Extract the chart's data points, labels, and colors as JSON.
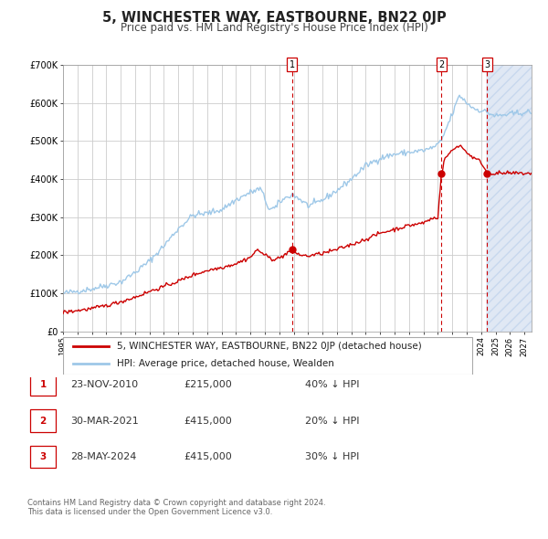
{
  "title": "5, WINCHESTER WAY, EASTBOURNE, BN22 0JP",
  "subtitle": "Price paid vs. HM Land Registry's House Price Index (HPI)",
  "ylim": [
    0,
    700000
  ],
  "yticks": [
    0,
    100000,
    200000,
    300000,
    400000,
    500000,
    600000,
    700000
  ],
  "ytick_labels": [
    "£0",
    "£100K",
    "£200K",
    "£300K",
    "£400K",
    "£500K",
    "£600K",
    "£700K"
  ],
  "xlim_start": 1995.0,
  "xlim_end": 2027.5,
  "hpi_color": "#9ec8e8",
  "price_color": "#cc0000",
  "marker_color": "#cc0000",
  "vline_color": "#cc0000",
  "plot_bg_color": "#ffffff",
  "grid_color": "#cccccc",
  "hatch_color": "#e0e8f4",
  "legend_label_price": "5, WINCHESTER WAY, EASTBOURNE, BN22 0JP (detached house)",
  "legend_label_hpi": "HPI: Average price, detached house, Wealden",
  "sales": [
    {
      "num": 1,
      "date_num": 2010.9,
      "price": 215000,
      "label": "23-NOV-2010",
      "pct": "40%",
      "dir": "↓"
    },
    {
      "num": 2,
      "date_num": 2021.25,
      "price": 415000,
      "label": "30-MAR-2021",
      "pct": "20%",
      "dir": "↓"
    },
    {
      "num": 3,
      "date_num": 2024.42,
      "price": 415000,
      "label": "28-MAY-2024",
      "pct": "30%",
      "dir": "↓"
    }
  ],
  "footer": "Contains HM Land Registry data © Crown copyright and database right 2024.\nThis data is licensed under the Open Government Licence v3.0.",
  "title_fontsize": 10.5,
  "subtitle_fontsize": 8.5,
  "tick_fontsize": 7,
  "legend_fontsize": 7.5,
  "table_fontsize": 8
}
